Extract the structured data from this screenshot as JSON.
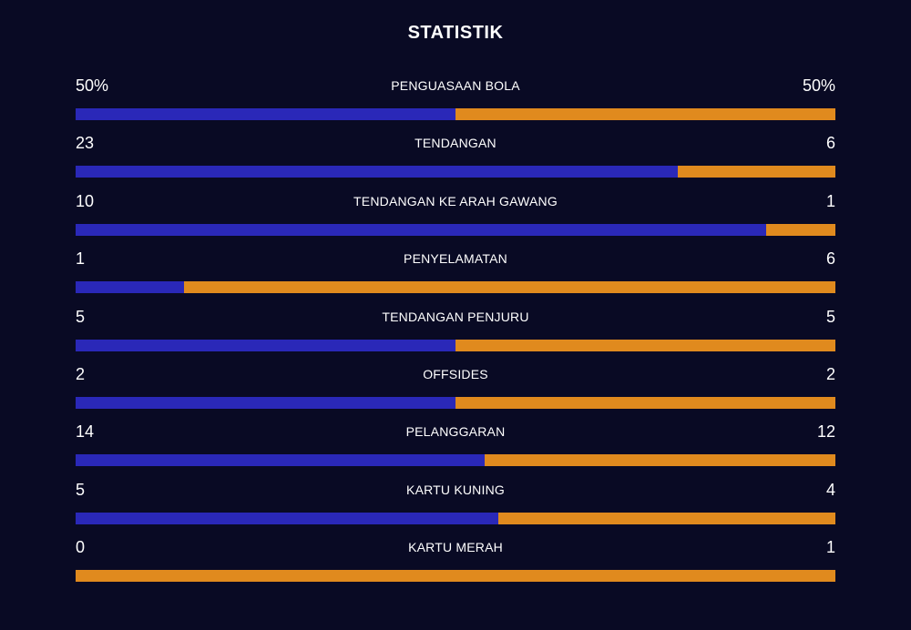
{
  "title": "STATISTIK",
  "colors": {
    "background": "#090a24",
    "home": "#2a28b8",
    "away": "#e08a1e"
  },
  "stats": [
    {
      "label": "PENGUASAAN BOLA",
      "home": "50%",
      "away": "50%",
      "home_share": 0.5
    },
    {
      "label": "TENDANGAN",
      "home": "23",
      "away": "6",
      "home_share": 0.793
    },
    {
      "label": "TENDANGAN KE ARAH GAWANG",
      "home": "10",
      "away": "1",
      "home_share": 0.909
    },
    {
      "label": "PENYELAMATAN",
      "home": "1",
      "away": "6",
      "home_share": 0.143
    },
    {
      "label": "TENDANGAN PENJURU",
      "home": "5",
      "away": "5",
      "home_share": 0.5
    },
    {
      "label": "OFFSIDES",
      "home": "2",
      "away": "2",
      "home_share": 0.5
    },
    {
      "label": "PELANGGARAN",
      "home": "14",
      "away": "12",
      "home_share": 0.538
    },
    {
      "label": "KARTU KUNING",
      "home": "5",
      "away": "4",
      "home_share": 0.556
    },
    {
      "label": "KARTU MERAH",
      "home": "0",
      "away": "1",
      "home_share": 0.0
    }
  ]
}
